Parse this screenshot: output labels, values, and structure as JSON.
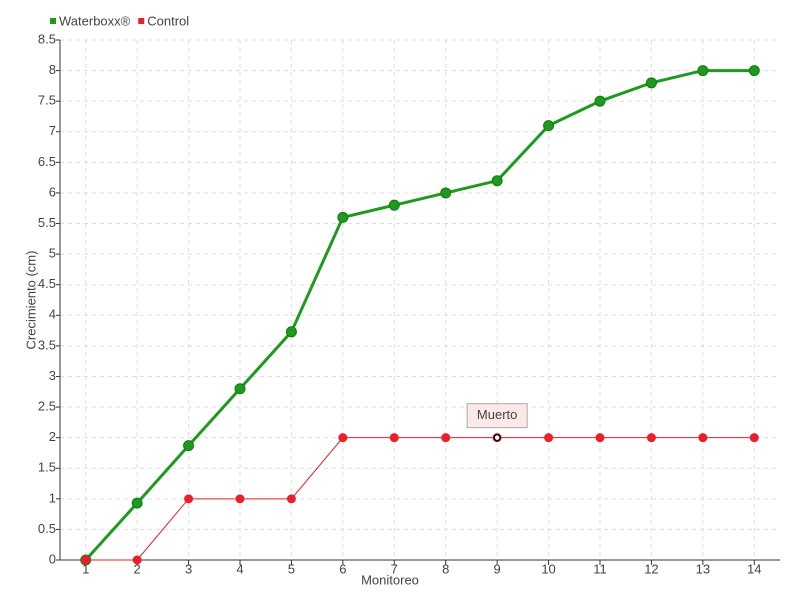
{
  "chart_data": {
    "type": "line",
    "x_label": "Monitoreo",
    "y_label": "Crecimiento (cm)",
    "categories": [
      "1",
      "2",
      "3",
      "4",
      "5",
      "6",
      "7",
      "8",
      "9",
      "10",
      "11",
      "12",
      "13",
      "14"
    ],
    "series": [
      {
        "name": "Waterboxx®",
        "color": "#1e9a1e",
        "values": [
          0,
          0.93,
          1.87,
          2.8,
          3.73,
          5.6,
          5.8,
          6,
          6.2,
          7.1,
          7.5,
          7.8,
          8,
          8
        ]
      },
      {
        "name": "Control",
        "color": "#e8202a",
        "values": [
          0,
          0,
          1,
          1,
          1,
          2,
          2,
          2,
          2,
          2,
          2,
          2,
          2,
          2
        ]
      }
    ],
    "ylim": [
      0,
      8.5
    ],
    "yticks": [
      0,
      0.5,
      1,
      1.5,
      2,
      2.5,
      3,
      3.5,
      4,
      4.5,
      5,
      5.5,
      6,
      6.5,
      7,
      7.5,
      8,
      8.5
    ],
    "grid": true,
    "annotations": [
      {
        "text": "Muerto",
        "x": "9",
        "y": 2
      }
    ]
  }
}
